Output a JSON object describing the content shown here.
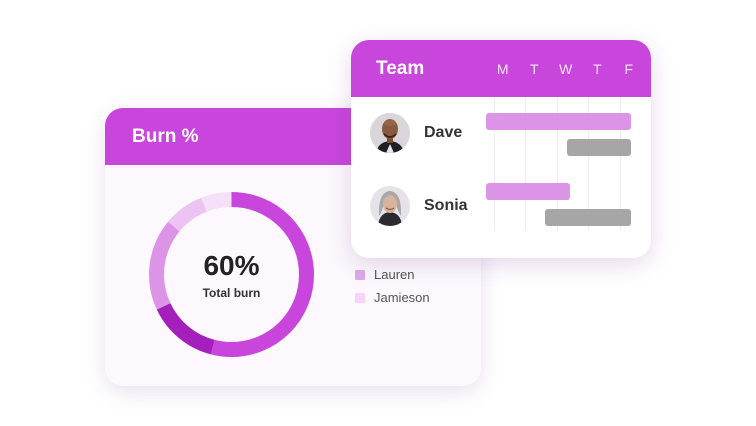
{
  "burn_card": {
    "title": "Burn %",
    "donut": {
      "value": "60%",
      "label": "Total burn",
      "segments": [
        {
          "fraction": 0.54,
          "color": "#c846dc"
        },
        {
          "fraction": 0.14,
          "color": "#a41fbc"
        },
        {
          "fraction": 0.18,
          "color": "#dc95e6"
        },
        {
          "fraction": 0.08,
          "color": "#ebc4f1"
        },
        {
          "fraction": 0.06,
          "color": "#f6dff9"
        }
      ]
    },
    "legend": [
      {
        "label": "Lauren",
        "color": "#dcaae6"
      },
      {
        "label": "Jamieson",
        "color": "#f6d3f8"
      }
    ]
  },
  "team_card": {
    "title": "Team",
    "days": [
      "M",
      "T",
      "W",
      "T",
      "F"
    ],
    "members": [
      {
        "name": "Dave",
        "avatar": "person-bald-man-icon"
      },
      {
        "name": "Sonia",
        "avatar": "person-gray-haired-woman-icon"
      }
    ]
  },
  "colors": {
    "accent": "#c846dc",
    "bar_pink": "#dc95e6",
    "bar_gray": "#a6a6a6"
  }
}
